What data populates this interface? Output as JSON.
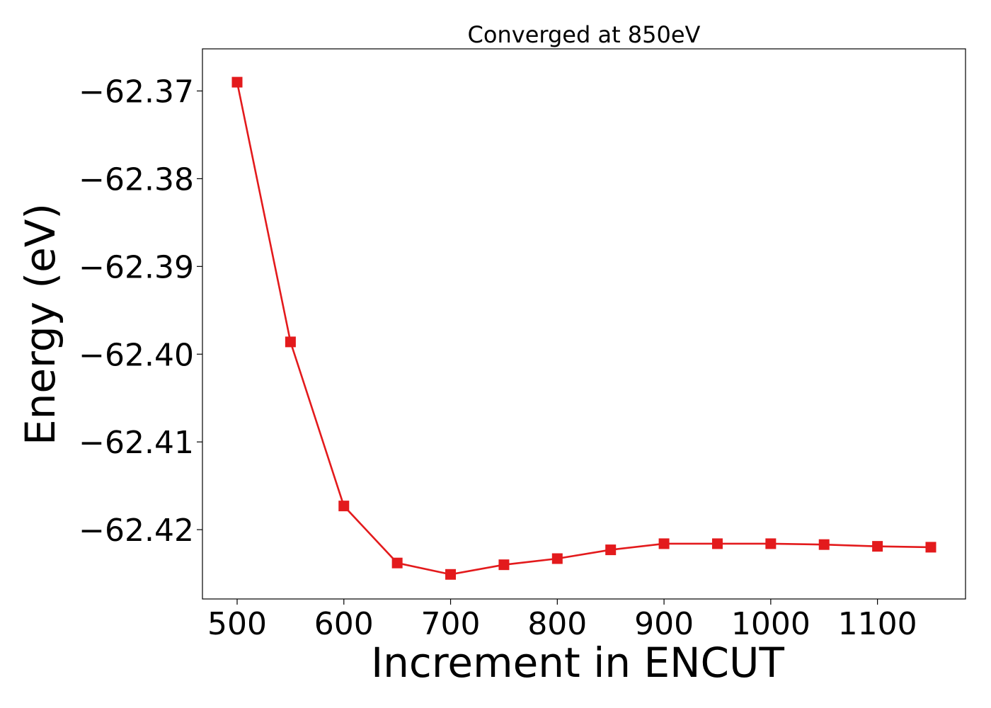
{
  "chart_data": {
    "type": "line",
    "title": "Converged at 850eV",
    "xlabel": "Increment in ENCUT",
    "ylabel": "Energy (eV)",
    "x": [
      500,
      550,
      600,
      650,
      700,
      750,
      800,
      850,
      900,
      950,
      1000,
      1050,
      1100,
      1150
    ],
    "series": [
      {
        "name": "",
        "color": "#e31a1c",
        "marker": "square",
        "values": [
          -62.369,
          -62.3986,
          -62.4173,
          -62.4238,
          -62.4251,
          -62.424,
          -62.4233,
          -62.4223,
          -62.4216,
          -62.4216,
          -62.4216,
          -62.4217,
          -62.4219,
          -62.422
        ]
      }
    ],
    "xlim": [
      467.5,
      1182.5
    ],
    "ylim": [
      -62.4279,
      -62.3652
    ],
    "xticks": [
      500,
      600,
      700,
      800,
      900,
      1000,
      1100
    ],
    "xtick_labels": [
      "500",
      "600",
      "700",
      "800",
      "900",
      "1000",
      "1100"
    ],
    "yticks": [
      -62.37,
      -62.38,
      -62.39,
      -62.4,
      -62.41,
      -62.42
    ],
    "ytick_labels": [
      "−62.37",
      "−62.38",
      "−62.39",
      "−62.40",
      "−62.41",
      "−62.42"
    ],
    "grid": false,
    "legend": "none"
  }
}
